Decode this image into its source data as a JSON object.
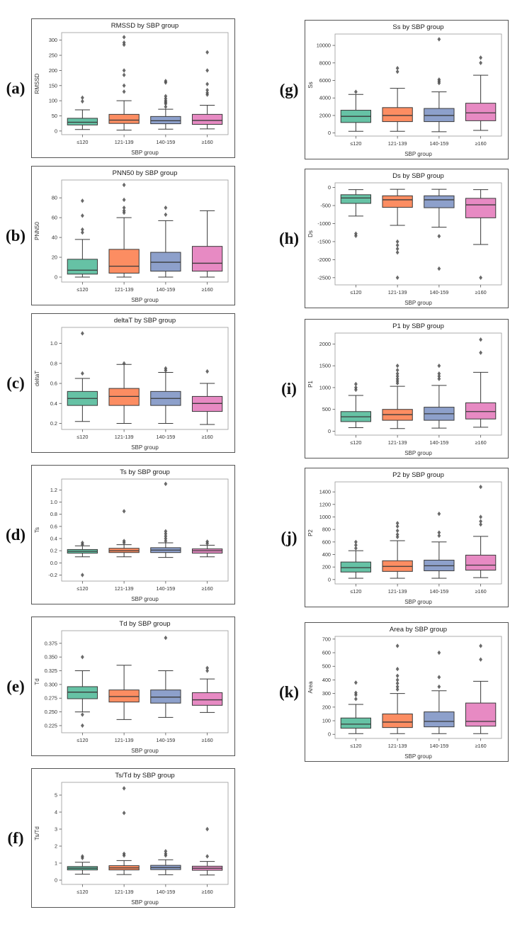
{
  "figure": {
    "background": "#ffffff",
    "palette": [
      "#66c2a5",
      "#fc8d62",
      "#8da0cb",
      "#e78ac3"
    ],
    "box_edge_color": "#3a3a3a",
    "outlier_color": "#4f4f4f",
    "categories": [
      "≤120",
      "121-139",
      "140-159",
      "≥160"
    ],
    "xlabel": "SBP group"
  },
  "chart_data": [
    {
      "type": "box",
      "panel_label": "(a)",
      "title": "RMSSD by SBP group",
      "ylabel": "RMSSD",
      "xlabel": "SBP group",
      "categories": [
        "≤120",
        "121-139",
        "140-159",
        "≥160"
      ],
      "ylim": [
        -12,
        325
      ],
      "ytick_values": [
        0,
        50,
        100,
        150,
        200,
        250,
        300
      ],
      "ytick_labels": [
        "0",
        "50",
        "100",
        "150",
        "200",
        "250",
        "300"
      ],
      "groups": [
        {
          "whislo": 5,
          "q1": 20,
          "med": 29,
          "q3": 42,
          "whishi": 70,
          "outliers": [
            98,
            110
          ]
        },
        {
          "whislo": 3,
          "q1": 25,
          "med": 36,
          "q3": 55,
          "whishi": 100,
          "outliers": [
            130,
            150,
            185,
            200,
            285,
            292,
            310
          ]
        },
        {
          "whislo": 6,
          "q1": 24,
          "med": 34,
          "q3": 48,
          "whishi": 72,
          "outliers": [
            80,
            90,
            95,
            100,
            107,
            115,
            160,
            165
          ]
        },
        {
          "whislo": 7,
          "q1": 22,
          "med": 35,
          "q3": 55,
          "whishi": 85,
          "outliers": [
            120,
            126,
            135,
            155,
            200,
            260
          ]
        }
      ]
    },
    {
      "type": "box",
      "panel_label": "(b)",
      "title": "PNN50 by SBP group",
      "ylabel": "PNN50",
      "xlabel": "SBP group",
      "categories": [
        "≤120",
        "121-139",
        "140-159",
        "≥160"
      ],
      "ylim": [
        -5,
        98
      ],
      "ytick_values": [
        0,
        20,
        40,
        60,
        80
      ],
      "ytick_labels": [
        "0",
        "20",
        "40",
        "60",
        "80"
      ],
      "groups": [
        {
          "whislo": 0,
          "q1": 3,
          "med": 7,
          "q3": 18,
          "whishi": 38,
          "outliers": [
            45,
            48,
            62,
            77
          ]
        },
        {
          "whislo": 0,
          "q1": 4,
          "med": 11,
          "q3": 28,
          "whishi": 60,
          "outliers": [
            65,
            67,
            70,
            78,
            93
          ]
        },
        {
          "whislo": 0,
          "q1": 6,
          "med": 15,
          "q3": 25,
          "whishi": 57,
          "outliers": [
            63,
            70
          ]
        },
        {
          "whislo": 0,
          "q1": 6,
          "med": 14,
          "q3": 31,
          "whishi": 67,
          "outliers": []
        }
      ]
    },
    {
      "type": "box",
      "panel_label": "(c)",
      "title": "deltaT by SBP group",
      "ylabel": "deltaT",
      "xlabel": "SBP group",
      "categories": [
        "≤120",
        "121-139",
        "140-159",
        "≥160"
      ],
      "ylim": [
        0.14,
        1.16
      ],
      "ytick_values": [
        0.2,
        0.4,
        0.6,
        0.8,
        1.0
      ],
      "ytick_labels": [
        "0.2",
        "0.4",
        "0.6",
        "0.8",
        "1.0"
      ],
      "groups": [
        {
          "whislo": 0.22,
          "q1": 0.38,
          "med": 0.45,
          "q3": 0.52,
          "whishi": 0.65,
          "outliers": [
            0.7,
            1.1
          ]
        },
        {
          "whislo": 0.2,
          "q1": 0.38,
          "med": 0.47,
          "q3": 0.55,
          "whishi": 0.79,
          "outliers": [
            0.8
          ]
        },
        {
          "whislo": 0.2,
          "q1": 0.38,
          "med": 0.45,
          "q3": 0.52,
          "whishi": 0.71,
          "outliers": [
            0.73,
            0.75
          ]
        },
        {
          "whislo": 0.19,
          "q1": 0.32,
          "med": 0.4,
          "q3": 0.47,
          "whishi": 0.6,
          "outliers": [
            0.72
          ]
        }
      ]
    },
    {
      "type": "box",
      "panel_label": "(d)",
      "title": "Ts by SBP group",
      "ylabel": "Ts",
      "xlabel": "SBP group",
      "categories": [
        "≤120",
        "121-139",
        "140-159",
        "≥160"
      ],
      "ylim": [
        -0.3,
        1.38
      ],
      "ytick_values": [
        -0.2,
        0.0,
        0.2,
        0.4,
        0.6,
        0.8,
        1.0,
        1.2
      ],
      "ytick_labels": [
        "-0.2",
        "0.0",
        "0.2",
        "0.4",
        "0.6",
        "0.8",
        "1.0",
        "1.2"
      ],
      "groups": [
        {
          "whislo": 0.1,
          "q1": 0.16,
          "med": 0.19,
          "q3": 0.22,
          "whishi": 0.28,
          "outliers": [
            -0.2,
            0.3,
            0.33
          ]
        },
        {
          "whislo": 0.1,
          "q1": 0.17,
          "med": 0.2,
          "q3": 0.24,
          "whishi": 0.3,
          "outliers": [
            0.33,
            0.36,
            0.85
          ]
        },
        {
          "whislo": 0.09,
          "q1": 0.17,
          "med": 0.21,
          "q3": 0.25,
          "whishi": 0.33,
          "outliers": [
            0.36,
            0.4,
            0.44,
            0.48,
            0.52,
            1.3
          ]
        },
        {
          "whislo": 0.1,
          "q1": 0.16,
          "med": 0.2,
          "q3": 0.23,
          "whishi": 0.29,
          "outliers": [
            0.32,
            0.35
          ]
        }
      ]
    },
    {
      "type": "box",
      "panel_label": "(e)",
      "title": "Td by SBP group",
      "ylabel": "Td",
      "xlabel": "SBP group",
      "categories": [
        "≤120",
        "121-139",
        "140-159",
        "≥160"
      ],
      "ylim": [
        0.212,
        0.398
      ],
      "ytick_values": [
        0.225,
        0.25,
        0.275,
        0.3,
        0.325,
        0.35,
        0.375
      ],
      "ytick_labels": [
        "0.225",
        "0.250",
        "0.275",
        "0.300",
        "0.325",
        "0.350",
        "0.375"
      ],
      "groups": [
        {
          "whislo": 0.25,
          "q1": 0.274,
          "med": 0.286,
          "q3": 0.296,
          "whishi": 0.325,
          "outliers": [
            0.225,
            0.245,
            0.35
          ]
        },
        {
          "whislo": 0.236,
          "q1": 0.268,
          "med": 0.278,
          "q3": 0.29,
          "whishi": 0.335,
          "outliers": []
        },
        {
          "whislo": 0.24,
          "q1": 0.266,
          "med": 0.277,
          "q3": 0.29,
          "whishi": 0.325,
          "outliers": [
            0.385
          ]
        },
        {
          "whislo": 0.249,
          "q1": 0.262,
          "med": 0.272,
          "q3": 0.285,
          "whishi": 0.31,
          "outliers": [
            0.325,
            0.33
          ]
        }
      ]
    },
    {
      "type": "box",
      "panel_label": "(f)",
      "title": "Ts/Td by SBP group",
      "ylabel": "Ts/Td",
      "xlabel": "SBP group",
      "categories": [
        "≤120",
        "121-139",
        "140-159",
        "≥160"
      ],
      "ylim": [
        -0.25,
        5.75
      ],
      "ytick_values": [
        0,
        1,
        2,
        3,
        4,
        5
      ],
      "ytick_labels": [
        "0",
        "1",
        "2",
        "3",
        "4",
        "5"
      ],
      "groups": [
        {
          "whislo": 0.35,
          "q1": 0.6,
          "med": 0.7,
          "q3": 0.8,
          "whishi": 1.05,
          "outliers": [
            1.3,
            1.4
          ]
        },
        {
          "whislo": 0.33,
          "q1": 0.6,
          "med": 0.72,
          "q3": 0.85,
          "whishi": 1.15,
          "outliers": [
            1.45,
            1.55,
            3.95,
            5.4
          ]
        },
        {
          "whislo": 0.32,
          "q1": 0.62,
          "med": 0.74,
          "q3": 0.87,
          "whishi": 1.2,
          "outliers": [
            1.45,
            1.55,
            1.7
          ]
        },
        {
          "whislo": 0.3,
          "q1": 0.58,
          "med": 0.7,
          "q3": 0.82,
          "whishi": 1.1,
          "outliers": [
            1.4,
            3.0
          ]
        }
      ]
    },
    {
      "type": "box",
      "panel_label": "(g)",
      "title": "Ss by SBP group",
      "ylabel": "Ss",
      "xlabel": "SBP group",
      "categories": [
        "≤120",
        "121-139",
        "140-159",
        "≥160"
      ],
      "ylim": [
        -350,
        11300
      ],
      "ytick_values": [
        0,
        2000,
        4000,
        6000,
        8000,
        10000
      ],
      "ytick_labels": [
        "0",
        "2000",
        "4000",
        "6000",
        "8000",
        "10000"
      ],
      "groups": [
        {
          "whislo": 200,
          "q1": 1200,
          "med": 1900,
          "q3": 2600,
          "whishi": 4400,
          "outliers": [
            4700
          ]
        },
        {
          "whislo": 200,
          "q1": 1300,
          "med": 2000,
          "q3": 2900,
          "whishi": 5100,
          "outliers": [
            7000,
            7400
          ]
        },
        {
          "whislo": 150,
          "q1": 1300,
          "med": 2000,
          "q3": 2800,
          "whishi": 4700,
          "outliers": [
            5700,
            5900,
            6100,
            10700
          ]
        },
        {
          "whislo": 300,
          "q1": 1400,
          "med": 2300,
          "q3": 3400,
          "whishi": 6600,
          "outliers": [
            8000,
            8600
          ]
        }
      ]
    },
    {
      "type": "box",
      "panel_label": "(h)",
      "title": "Ds by SBP group",
      "ylabel": "Ds",
      "xlabel": "SBP group",
      "categories": [
        "≤120",
        "121-139",
        "140-159",
        "≥160"
      ],
      "ylim": [
        -2700,
        130
      ],
      "ytick_values": [
        0,
        -500,
        -1000,
        -1500,
        -2000,
        -2500
      ],
      "ytick_labels": [
        "0",
        "-500",
        "-1000",
        "-1500",
        "-2000",
        "-2500"
      ],
      "groups": [
        {
          "whislo": -790,
          "q1": -440,
          "med": -290,
          "q3": -200,
          "whishi": -60,
          "outliers": [
            -1280,
            -1340
          ]
        },
        {
          "whislo": -1050,
          "q1": -550,
          "med": -340,
          "q3": -230,
          "whishi": -50,
          "outliers": [
            -1500,
            -1600,
            -1700,
            -1800,
            -2500
          ]
        },
        {
          "whislo": -1100,
          "q1": -560,
          "med": -340,
          "q3": -230,
          "whishi": -50,
          "outliers": [
            -1350,
            -2250
          ]
        },
        {
          "whislo": -1580,
          "q1": -840,
          "med": -480,
          "q3": -300,
          "whishi": -60,
          "outliers": [
            -2500
          ]
        }
      ]
    },
    {
      "type": "box",
      "panel_label": "(i)",
      "title": "P1 by SBP group",
      "ylabel": "P1",
      "xlabel": "SBP group",
      "categories": [
        "≤120",
        "121-139",
        "140-159",
        "≥160"
      ],
      "ylim": [
        -90,
        2250
      ],
      "ytick_values": [
        0,
        500,
        1000,
        1500,
        2000
      ],
      "ytick_labels": [
        "0",
        "500",
        "1000",
        "1500",
        "2000"
      ],
      "groups": [
        {
          "whislo": 80,
          "q1": 220,
          "med": 330,
          "q3": 450,
          "whishi": 820,
          "outliers": [
            950,
            1000,
            1080
          ]
        },
        {
          "whislo": 60,
          "q1": 250,
          "med": 380,
          "q3": 500,
          "whishi": 1030,
          "outliers": [
            1100,
            1150,
            1200,
            1260,
            1320,
            1400,
            1500
          ]
        },
        {
          "whislo": 70,
          "q1": 250,
          "med": 400,
          "q3": 550,
          "whishi": 1050,
          "outliers": [
            1200,
            1260,
            1320,
            1500
          ]
        },
        {
          "whislo": 90,
          "q1": 280,
          "med": 450,
          "q3": 650,
          "whishi": 1350,
          "outliers": [
            1800,
            2100
          ]
        }
      ]
    },
    {
      "type": "box",
      "panel_label": "(j)",
      "title": "P2 by SBP group",
      "ylabel": "P2",
      "xlabel": "SBP group",
      "categories": [
        "≤120",
        "121-139",
        "140-159",
        "≥160"
      ],
      "ylim": [
        -70,
        1560
      ],
      "ytick_values": [
        0,
        200,
        400,
        600,
        800,
        1000,
        1200,
        1400
      ],
      "ytick_labels": [
        "0",
        "200",
        "400",
        "600",
        "800",
        "1000",
        "1200",
        "1400"
      ],
      "groups": [
        {
          "whislo": 20,
          "q1": 120,
          "med": 190,
          "q3": 280,
          "whishi": 460,
          "outliers": [
            500,
            550,
            600
          ]
        },
        {
          "whislo": 20,
          "q1": 130,
          "med": 210,
          "q3": 300,
          "whishi": 620,
          "outliers": [
            680,
            720,
            780,
            850,
            900
          ]
        },
        {
          "whislo": 20,
          "q1": 140,
          "med": 220,
          "q3": 310,
          "whishi": 600,
          "outliers": [
            700,
            750,
            1050
          ]
        },
        {
          "whislo": 30,
          "q1": 150,
          "med": 230,
          "q3": 390,
          "whishi": 690,
          "outliers": [
            880,
            930,
            1000,
            1480
          ]
        }
      ]
    },
    {
      "type": "box",
      "panel_label": "(k)",
      "title": "Area by SBP group",
      "ylabel": "Area",
      "xlabel": "SBP group",
      "categories": [
        "≤120",
        "121-139",
        "140-159",
        "≥160"
      ],
      "ylim": [
        -30,
        720
      ],
      "ytick_values": [
        0,
        100,
        200,
        300,
        400,
        500,
        600,
        700
      ],
      "ytick_labels": [
        "0",
        "100",
        "200",
        "300",
        "400",
        "500",
        "600",
        "700"
      ],
      "groups": [
        {
          "whislo": 5,
          "q1": 45,
          "med": 75,
          "q3": 120,
          "whishi": 220,
          "outliers": [
            260,
            290,
            305,
            380
          ]
        },
        {
          "whislo": 5,
          "q1": 50,
          "med": 90,
          "q3": 150,
          "whishi": 300,
          "outliers": [
            330,
            350,
            375,
            400,
            430,
            480,
            650
          ]
        },
        {
          "whislo": 5,
          "q1": 55,
          "med": 95,
          "q3": 165,
          "whishi": 320,
          "outliers": [
            350,
            420,
            600
          ]
        },
        {
          "whislo": 5,
          "q1": 60,
          "med": 95,
          "q3": 230,
          "whishi": 390,
          "outliers": [
            550,
            650
          ]
        }
      ]
    }
  ],
  "layout_note": "11 box plots of cardiovascular/HRV measures by systolic blood pressure group"
}
